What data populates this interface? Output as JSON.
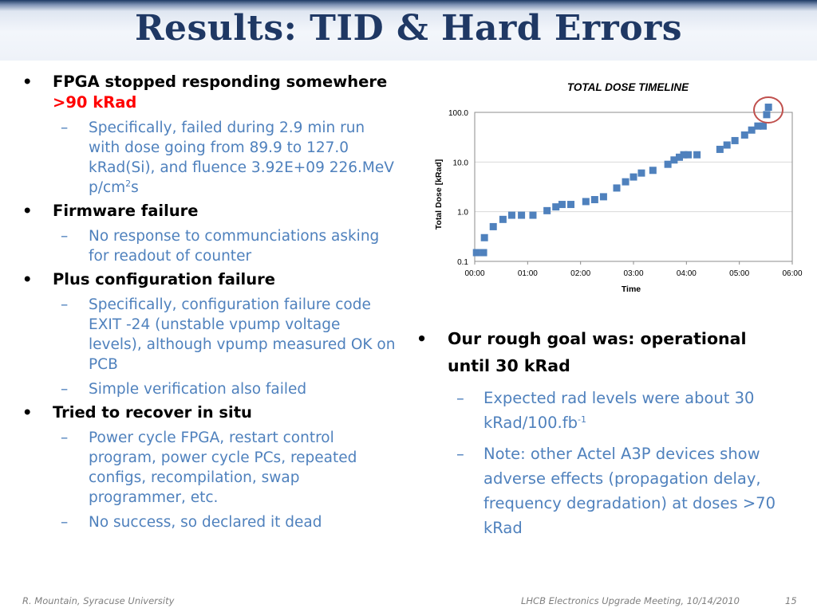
{
  "header": {
    "title": "Results: TID & Hard Errors"
  },
  "left": {
    "b1": {
      "text": "FPGA stopped responding somewhere ",
      "highlight": ">90 kRad"
    },
    "b1_sub": {
      "text": "Specifically, failed during 2.9 min run with dose going from 89.9 to 127.0 kRad(Si), and fluence 3.92E+09 226.MeV p/cm",
      "sup": "2",
      "tail": "s"
    },
    "b2": "Firmware failure",
    "b2_sub": "No response to communciations asking for readout of counter",
    "b3": "Plus configuration failure",
    "b3_sub1": "Specifically, configuration failure code EXIT -24 (unstable vpump voltage levels), although vpump measured OK on PCB",
    "b3_sub2": "Simple verification also failed",
    "b4": "Tried to recover in situ",
    "b4_sub1": "Power cycle FPGA, restart control program, power cycle PCs, repeated configs, recompilation, swap programmer, etc.",
    "b4_sub2": "No success, so declared it dead"
  },
  "right": {
    "b1": "Our rough goal was: operational until 30 kRad",
    "sub1": {
      "text": "Expected rad levels were about 30 kRad/100.fb",
      "sup": "-1"
    },
    "sub2": "Note: other Actel A3P devices show adverse effects (propagation delay, frequency degradation) at doses >70 kRad"
  },
  "footer": {
    "left": "R. Mountain, Syracuse University",
    "center": "LHCB Electronics Upgrade Meeting, 10/14/2010",
    "page": "15"
  },
  "colors": {
    "title": "#1f3864",
    "sub_text": "#4f81bd",
    "highlight": "#ff0000",
    "marker": "#4f81bd",
    "circle": "#c0504d"
  },
  "chart_data": {
    "type": "scatter",
    "title": "TOTAL DOSE TIMELINE",
    "xlabel": "Time",
    "ylabel": "Total Dose  [kRad]",
    "y_scale": "log",
    "ylim": [
      0.1,
      100.0
    ],
    "y_ticks": [
      "0.1",
      "1.0",
      "10.0",
      "100.0"
    ],
    "x_ticks": [
      "00:00",
      "01:00",
      "02:00",
      "03:00",
      "04:00",
      "05:00",
      "06:00"
    ],
    "xlim_minutes": [
      0,
      360
    ],
    "grid": true,
    "highlight": "circle around final point",
    "points": [
      {
        "x": "00:02",
        "y": 0.15
      },
      {
        "x": "00:10",
        "y": 0.15
      },
      {
        "x": "00:11",
        "y": 0.3
      },
      {
        "x": "00:21",
        "y": 0.5
      },
      {
        "x": "00:32",
        "y": 0.7
      },
      {
        "x": "00:42",
        "y": 0.85
      },
      {
        "x": "00:53",
        "y": 0.85
      },
      {
        "x": "01:06",
        "y": 0.85
      },
      {
        "x": "01:22",
        "y": 1.05
      },
      {
        "x": "01:32",
        "y": 1.25
      },
      {
        "x": "01:39",
        "y": 1.4
      },
      {
        "x": "01:49",
        "y": 1.4
      },
      {
        "x": "02:06",
        "y": 1.6
      },
      {
        "x": "02:16",
        "y": 1.75
      },
      {
        "x": "02:26",
        "y": 2.0
      },
      {
        "x": "02:41",
        "y": 3.0
      },
      {
        "x": "02:51",
        "y": 4.0
      },
      {
        "x": "03:00",
        "y": 5.0
      },
      {
        "x": "03:09",
        "y": 6.0
      },
      {
        "x": "03:22",
        "y": 6.8
      },
      {
        "x": "03:39",
        "y": 9.0
      },
      {
        "x": "03:46",
        "y": 11.0
      },
      {
        "x": "03:52",
        "y": 12.5
      },
      {
        "x": "03:57",
        "y": 14.0
      },
      {
        "x": "04:02",
        "y": 14.0
      },
      {
        "x": "04:12",
        "y": 14.0
      },
      {
        "x": "04:38",
        "y": 18.0
      },
      {
        "x": "04:46",
        "y": 22.0
      },
      {
        "x": "04:55",
        "y": 27.0
      },
      {
        "x": "05:06",
        "y": 35.0
      },
      {
        "x": "05:14",
        "y": 44.0
      },
      {
        "x": "05:21",
        "y": 53.0
      },
      {
        "x": "05:27",
        "y": 53.0
      },
      {
        "x": "05:31",
        "y": 90.0
      },
      {
        "x": "05:33",
        "y": 127.0
      }
    ]
  }
}
